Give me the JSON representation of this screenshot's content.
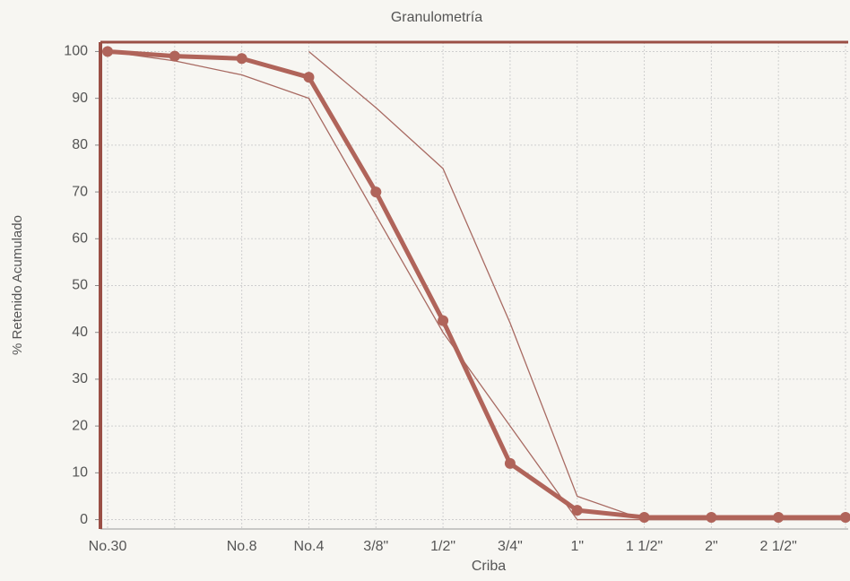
{
  "chart_data": {
    "type": "line",
    "title": "Granulometría",
    "x_label": "Criba",
    "y_label": "% Retenido Acumulado",
    "categories": [
      "No.30",
      null,
      "No.8",
      "No.4",
      "3/8\"",
      "1/2\"",
      "3/4\"",
      "1\"",
      "1 1/2\"",
      "2\"",
      "2 1/2\"",
      null
    ],
    "series": [
      {
        "color": "#a86a62",
        "values": [
          null,
          null,
          null,
          100,
          88,
          75,
          42,
          5,
          0,
          0,
          0,
          0
        ]
      },
      {
        "color": "#a86a62",
        "values": [
          100,
          98,
          95,
          90,
          65,
          40,
          20,
          0,
          0,
          0,
          0,
          0
        ]
      },
      {
        "color": "#b0645a",
        "values": [
          100,
          99,
          98.5,
          94.5,
          70,
          42.5,
          12,
          2,
          0.5,
          0.5,
          0.5,
          0.5
        ],
        "markers": true
      }
    ],
    "ylim": [
      -2,
      102
    ],
    "yticks": [
      0,
      10,
      20,
      30,
      40,
      50,
      60,
      70,
      80,
      90,
      100
    ],
    "grid": true
  }
}
